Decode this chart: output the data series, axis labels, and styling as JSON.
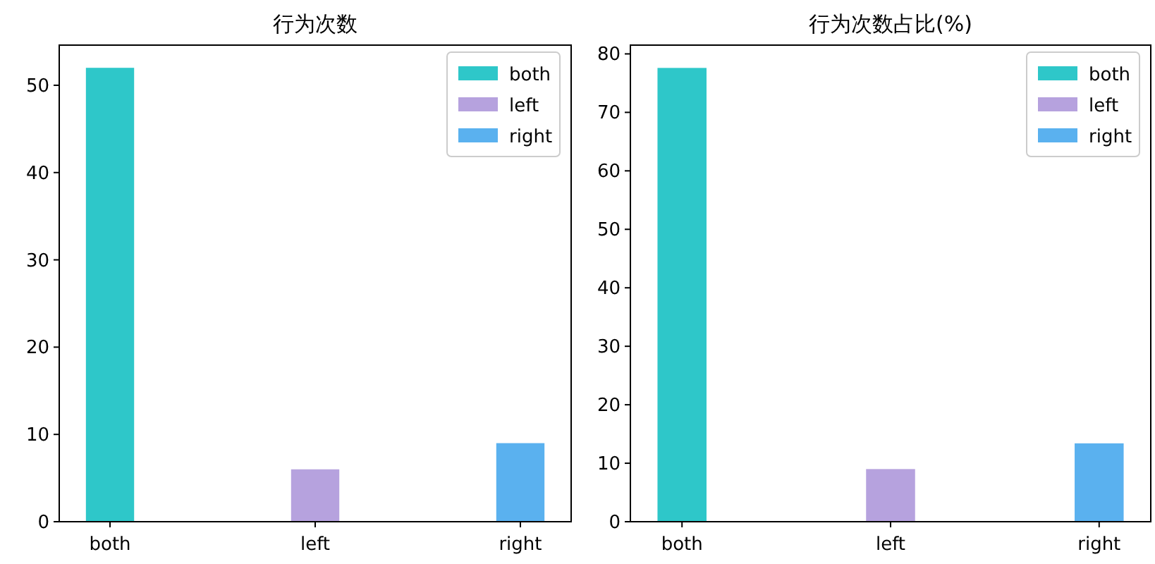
{
  "chart_data": [
    {
      "type": "bar",
      "title": "行为次数",
      "categories": [
        "both",
        "left",
        "right"
      ],
      "series": [
        {
          "name": "both",
          "color": "#2ec7c9",
          "values": [
            52,
            null,
            null
          ]
        },
        {
          "name": "left",
          "color": "#b6a2de",
          "values": [
            null,
            6,
            null
          ]
        },
        {
          "name": "right",
          "color": "#5ab1ef",
          "values": [
            null,
            null,
            9
          ]
        }
      ],
      "ylim": [
        0,
        54.6
      ],
      "yticks": [
        0,
        10,
        20,
        30,
        40,
        50
      ],
      "legend": "top right",
      "grid": false
    },
    {
      "type": "bar",
      "title": "行为次数占比(%)",
      "categories": [
        "both",
        "left",
        "right"
      ],
      "series": [
        {
          "name": "both",
          "color": "#2ec7c9",
          "values": [
            77.6,
            null,
            null
          ]
        },
        {
          "name": "left",
          "color": "#b6a2de",
          "values": [
            null,
            9.0,
            null
          ]
        },
        {
          "name": "right",
          "color": "#5ab1ef",
          "values": [
            null,
            null,
            13.4
          ]
        }
      ],
      "ylim": [
        0,
        81.5
      ],
      "yticks": [
        0,
        10,
        20,
        30,
        40,
        50,
        60,
        70,
        80
      ],
      "legend": "top right",
      "grid": false
    }
  ]
}
